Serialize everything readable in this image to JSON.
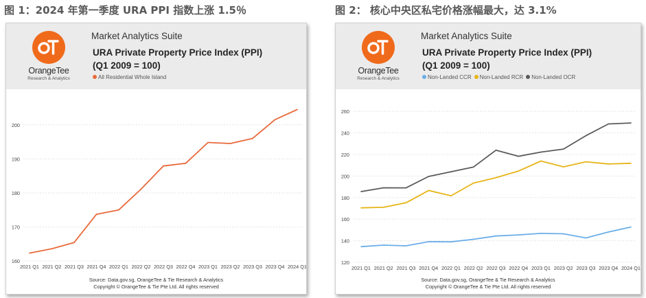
{
  "figures": [
    {
      "caption": "图 1：2024 年第一季度 URA PPI 指数上涨 1.5％",
      "logo": {
        "name": "OrangeTee",
        "subtitle": "Research & Analytics"
      },
      "suite": "Market Analytics Suite",
      "title_line1": "URA Private Property Price Index (PPI)",
      "title_line2": "(Q1 2009 = 100)",
      "source": "Source: Data.gov.sg, OrangeTee & Tie Research & Analytics",
      "copyright": "Copyright © OrangeTee & Tie Pte Ltd. All rights reserved"
    },
    {
      "caption": "图 2： 核心中央区私宅价格涨幅最大，达 3.1%",
      "logo": {
        "name": "OrangeTee",
        "subtitle": "Research & Analytics"
      },
      "suite": "Market Analytics Suite",
      "title_line1": "URA Private Property Price Index (PPI)",
      "title_line2": "(Q1 2009 = 100)",
      "source": "Source: Data.gov.sg, OrangeTee & Tie Research & Analytics",
      "copyright": "Copyright © OrangeTee & Tie Pte Ltd. All rights reserved"
    }
  ],
  "chart_data": [
    {
      "type": "line",
      "title": "URA Private Property Price Index (PPI)",
      "subtitle": "(Q1 2009 = 100)",
      "categories": [
        "2021 Q1",
        "2021 Q2",
        "2021 Q3",
        "2021 Q4",
        "2022 Q1",
        "2022 Q2",
        "2022 Q3",
        "2022 Q4",
        "2023 Q1",
        "2023 Q2",
        "2023 Q3",
        "2023 Q4",
        "2024 Q1"
      ],
      "series": [
        {
          "name": "All Residential Whole Island",
          "color": "#e8693a",
          "values": [
            162.3,
            163.6,
            165.4,
            173.7,
            175.0,
            181.1,
            187.9,
            188.7,
            194.8,
            194.5,
            196.0,
            201.5,
            204.5
          ]
        }
      ],
      "ylim": [
        160,
        205
      ],
      "yticks": [
        160,
        170,
        180,
        190,
        200
      ],
      "grid": true,
      "legend": "top-left"
    },
    {
      "type": "line",
      "title": "URA Private Property Price Index (PPI)",
      "subtitle": "(Q1 2009 = 100)",
      "categories": [
        "2021 Q1",
        "2021 Q2",
        "2021 Q3",
        "2021 Q4",
        "2022 Q1",
        "2022 Q2",
        "2022 Q3",
        "2022 Q4",
        "2023 Q1",
        "2023 Q2",
        "2023 Q3",
        "2023 Q4",
        "2024 Q1"
      ],
      "series": [
        {
          "name": "Non-Landed CCR",
          "color": "#6aaee8",
          "values": [
            134.5,
            135.9,
            135.3,
            139.1,
            139.0,
            141.3,
            144.4,
            145.4,
            146.8,
            146.4,
            142.6,
            148.1,
            152.7
          ]
        },
        {
          "name": "Non-Landed RCR",
          "color": "#e6b417",
          "values": [
            170.5,
            171.0,
            175.2,
            186.6,
            181.7,
            193.5,
            198.5,
            204.6,
            213.9,
            208.5,
            213.2,
            211.2,
            211.8
          ]
        },
        {
          "name": "Non-Landed OCR",
          "color": "#5a5a5a",
          "values": [
            185.6,
            189.1,
            189.0,
            199.6,
            204.0,
            208.4,
            224.0,
            218.3,
            222.2,
            225.0,
            237.4,
            248.3,
            249.2
          ]
        }
      ],
      "ylim": [
        120,
        262
      ],
      "yticks": [
        120,
        140,
        160,
        180,
        200,
        220,
        240,
        260
      ],
      "grid": true,
      "legend": "top-left"
    }
  ]
}
